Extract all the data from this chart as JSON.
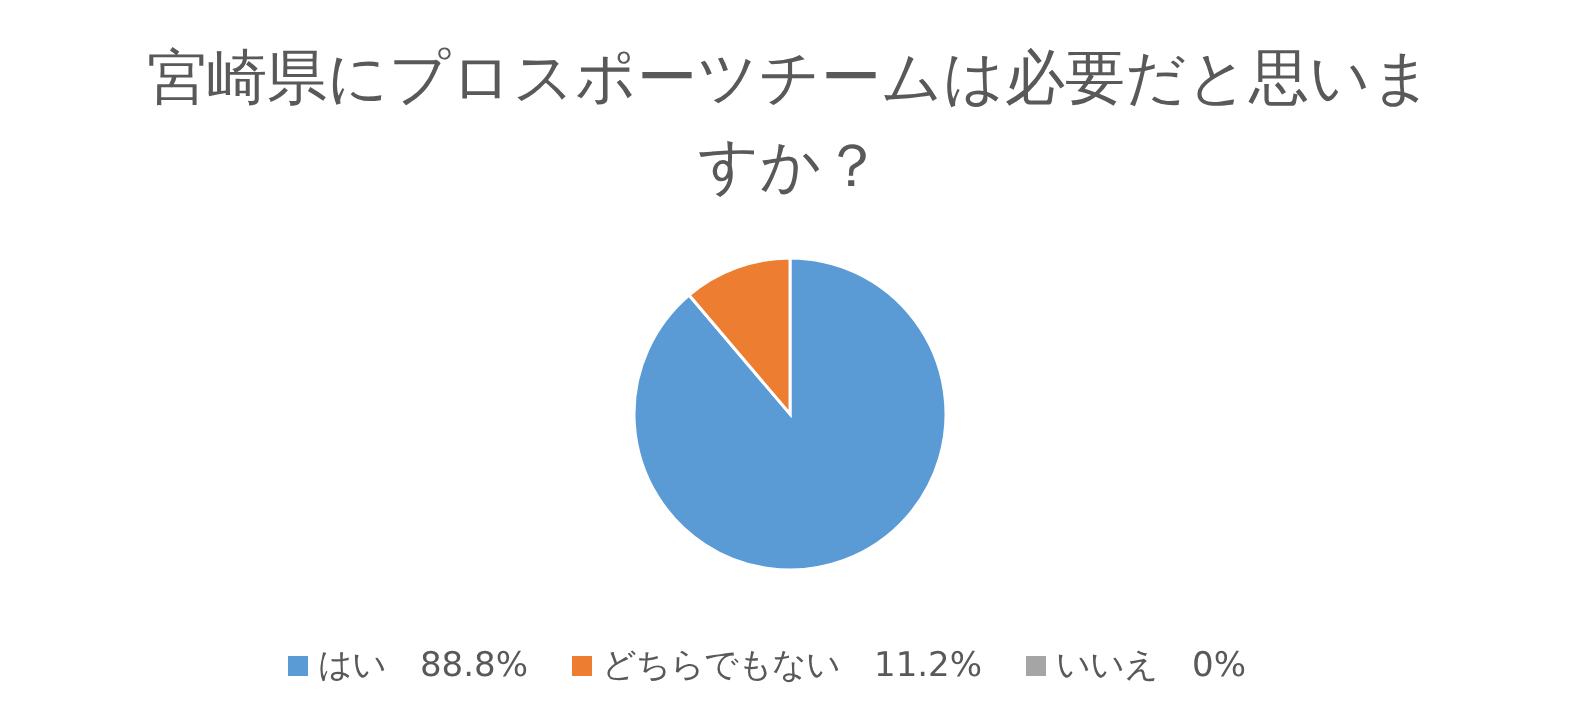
{
  "chart_data": {
    "type": "pie",
    "title": "宮崎県にプロスポーツチームは必要だと思いますか？",
    "categories": [
      "はい",
      "どちらでもない",
      "いいえ"
    ],
    "values": [
      88.8,
      11.2,
      0
    ],
    "value_labels": [
      "88.8%",
      "11.2%",
      "0%"
    ],
    "colors": [
      "#5b9bd5",
      "#ed7d31",
      "#a5a5a5"
    ],
    "legend": "bottom"
  }
}
